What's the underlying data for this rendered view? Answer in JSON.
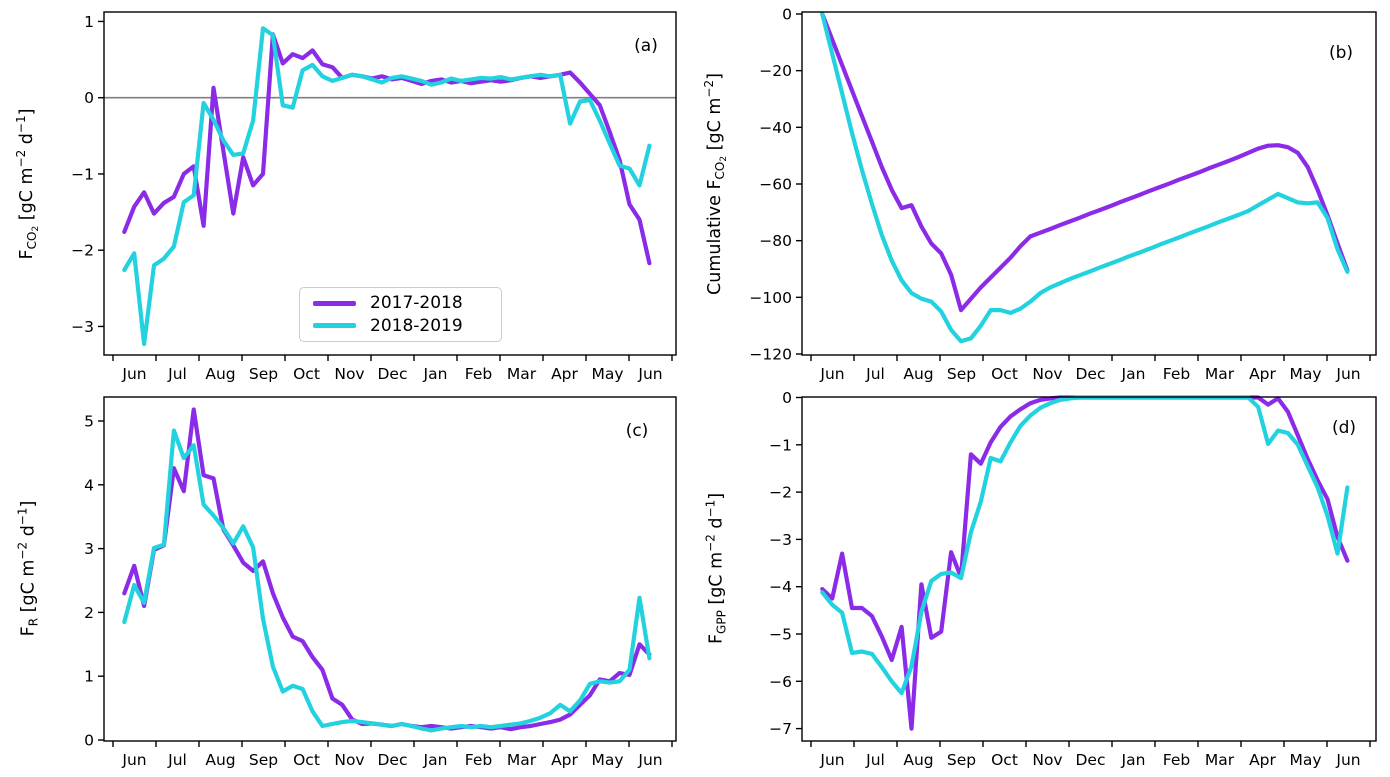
{
  "figure": {
    "background": "#ffffff",
    "months": [
      "Jun",
      "Jul",
      "Aug",
      "Sep",
      "Oct",
      "Nov",
      "Dec",
      "Jan",
      "Feb",
      "Mar",
      "Apr",
      "May",
      "Jun"
    ],
    "series_days": {
      "start": 8,
      "step": 7,
      "count": 54
    },
    "colors": {
      "series_2017_2018": "#8B2BE8",
      "series_2018_2019": "#22D2DE",
      "zero_line": "#808080",
      "spine": "#000000"
    },
    "legend": {
      "entries": [
        {
          "label": "2017-2018",
          "color_key": "series_2017_2018"
        },
        {
          "label": "2018-2019",
          "color_key": "series_2018_2019"
        }
      ]
    }
  },
  "chart_data": [
    {
      "id": "a",
      "type": "line",
      "letter": "(a)",
      "ylabel_segments": [
        {
          "t": "F"
        },
        {
          "s": "CO"
        },
        {
          "ss": "2"
        },
        {
          "t": " [gC m"
        },
        {
          "p": "−2"
        },
        {
          "t": " d"
        },
        {
          "p": "−1"
        },
        {
          "t": "]"
        }
      ],
      "x_categories": [
        "Jun",
        "Jul",
        "Aug",
        "Sep",
        "Oct",
        "Nov",
        "Dec",
        "Jan",
        "Feb",
        "Mar",
        "Apr",
        "May",
        "Jun"
      ],
      "ylim": [
        -3.37,
        1.12
      ],
      "grid": false,
      "zero_line": true,
      "yticks": [
        {
          "v": 1,
          "label": "1"
        },
        {
          "v": 0,
          "label": "0"
        },
        {
          "v": -1,
          "label": "−1"
        },
        {
          "v": -2,
          "label": "−2"
        },
        {
          "v": -3,
          "label": "−3"
        }
      ],
      "series": [
        {
          "name": "2017-2018",
          "color_key": "series_2017_2018",
          "values": [
            -1.76,
            -1.43,
            -1.24,
            -1.52,
            -1.38,
            -1.3,
            -1.0,
            -0.9,
            -1.68,
            0.13,
            -0.7,
            -1.52,
            -0.78,
            -1.15,
            -1.0,
            0.83,
            0.45,
            0.57,
            0.52,
            0.62,
            0.44,
            0.4,
            0.26,
            0.3,
            0.28,
            0.25,
            0.28,
            0.24,
            0.26,
            0.22,
            0.18,
            0.22,
            0.24,
            0.2,
            0.22,
            0.19,
            0.21,
            0.23,
            0.21,
            0.23,
            0.26,
            0.28,
            0.26,
            0.28,
            0.3,
            0.33,
            0.2,
            0.05,
            -0.1,
            -0.45,
            -0.82,
            -1.4,
            -1.6,
            -2.17
          ]
        },
        {
          "name": "2018-2019",
          "color_key": "series_2018_2019",
          "values": [
            -2.26,
            -2.04,
            -3.23,
            -2.2,
            -2.11,
            -1.95,
            -1.37,
            -1.28,
            -0.07,
            -0.29,
            -0.56,
            -0.75,
            -0.73,
            -0.3,
            0.91,
            0.82,
            -0.1,
            -0.13,
            0.36,
            0.43,
            0.28,
            0.22,
            0.26,
            0.3,
            0.28,
            0.24,
            0.2,
            0.26,
            0.28,
            0.25,
            0.22,
            0.17,
            0.2,
            0.25,
            0.22,
            0.24,
            0.26,
            0.25,
            0.27,
            0.24,
            0.26,
            0.28,
            0.3,
            0.28,
            0.3,
            -0.34,
            -0.05,
            -0.03,
            -0.3,
            -0.6,
            -0.89,
            -0.93,
            -1.15,
            -0.63
          ]
        }
      ]
    },
    {
      "id": "b",
      "type": "line",
      "letter": "(b)",
      "ylabel_segments": [
        {
          "t": "Cumulative F"
        },
        {
          "s": "CO"
        },
        {
          "ss": "2"
        },
        {
          "t": " [gC m"
        },
        {
          "p": "−2"
        },
        {
          "t": "]"
        }
      ],
      "x_categories": [
        "Jun",
        "Jul",
        "Aug",
        "Sep",
        "Oct",
        "Nov",
        "Dec",
        "Jan",
        "Feb",
        "Mar",
        "Apr",
        "May",
        "Jun"
      ],
      "ylim": [
        -120,
        0
      ],
      "grid": false,
      "zero_line": false,
      "yticks": [
        {
          "v": 0,
          "label": "0"
        },
        {
          "v": -20,
          "label": "−20"
        },
        {
          "v": -40,
          "label": "−40"
        },
        {
          "v": -60,
          "label": "−60"
        },
        {
          "v": -80,
          "label": "−80"
        },
        {
          "v": -100,
          "label": "−100"
        },
        {
          "v": -120,
          "label": "−120"
        }
      ],
      "series": [
        {
          "name": "2017-2018",
          "color_key": "series_2017_2018",
          "values": [
            0,
            -9,
            -18,
            -27,
            -36,
            -45,
            -54,
            -62,
            -68.5,
            -67.5,
            -75,
            -81,
            -84.5,
            -92,
            -104.5,
            -100.5,
            -96.5,
            -93,
            -89.5,
            -86,
            -82,
            -78.5,
            -77.2,
            -75.9,
            -74.5,
            -73.2,
            -71.9,
            -70.5,
            -69.2,
            -67.9,
            -66.5,
            -65.2,
            -63.9,
            -62.5,
            -61.2,
            -59.9,
            -58.5,
            -57.2,
            -55.9,
            -54.5,
            -53.2,
            -51.9,
            -50.5,
            -49,
            -47.5,
            -46.5,
            -46.3,
            -47,
            -49,
            -54,
            -62,
            -71,
            -81,
            -90.5
          ]
        },
        {
          "name": "2018-2019",
          "color_key": "series_2018_2019",
          "values": [
            0,
            -14,
            -28,
            -42,
            -55,
            -67,
            -78,
            -87,
            -94,
            -98.5,
            -100.5,
            -101.5,
            -105,
            -111.5,
            -115.5,
            -114.5,
            -110,
            -104.5,
            -104.5,
            -105.5,
            -104,
            -101.5,
            -98.5,
            -96.5,
            -95,
            -93.5,
            -92.2,
            -90.9,
            -89.5,
            -88.2,
            -86.9,
            -85.5,
            -84.2,
            -82.9,
            -81.5,
            -80.2,
            -78.9,
            -77.5,
            -76.2,
            -74.9,
            -73.5,
            -72.2,
            -70.9,
            -69.5,
            -67.5,
            -65.5,
            -63.5,
            -65,
            -66.5,
            -66.8,
            -66.5,
            -72,
            -83,
            -91
          ]
        }
      ]
    },
    {
      "id": "c",
      "type": "line",
      "letter": "(c)",
      "ylabel_segments": [
        {
          "t": "F"
        },
        {
          "s": "R"
        },
        {
          "t": " [gC m"
        },
        {
          "p": "−2"
        },
        {
          "t": " d"
        },
        {
          "p": "−1"
        },
        {
          "t": "]"
        }
      ],
      "x_categories": [
        "Jun",
        "Jul",
        "Aug",
        "Sep",
        "Oct",
        "Nov",
        "Dec",
        "Jan",
        "Feb",
        "Mar",
        "Apr",
        "May",
        "Jun"
      ],
      "ylim": [
        0,
        5.35
      ],
      "grid": false,
      "zero_line": false,
      "yticks": [
        {
          "v": 5,
          "label": "5"
        },
        {
          "v": 4,
          "label": "4"
        },
        {
          "v": 3,
          "label": "3"
        },
        {
          "v": 2,
          "label": "2"
        },
        {
          "v": 1,
          "label": "1"
        },
        {
          "v": 0,
          "label": "0"
        }
      ],
      "series": [
        {
          "name": "2017-2018",
          "color_key": "series_2017_2018",
          "values": [
            2.3,
            2.73,
            2.1,
            2.98,
            3.05,
            4.26,
            3.9,
            5.18,
            4.15,
            4.1,
            3.3,
            3.05,
            2.78,
            2.65,
            2.8,
            2.3,
            1.92,
            1.62,
            1.55,
            1.3,
            1.1,
            0.65,
            0.55,
            0.32,
            0.25,
            0.26,
            0.24,
            0.22,
            0.25,
            0.22,
            0.2,
            0.22,
            0.2,
            0.18,
            0.2,
            0.22,
            0.2,
            0.18,
            0.2,
            0.17,
            0.2,
            0.22,
            0.25,
            0.28,
            0.32,
            0.4,
            0.55,
            0.7,
            0.95,
            0.92,
            1.05,
            1.02,
            1.5,
            1.34
          ]
        },
        {
          "name": "2018-2019",
          "color_key": "series_2018_2019",
          "values": [
            1.85,
            2.43,
            2.15,
            3.01,
            3.06,
            4.85,
            4.42,
            4.62,
            3.69,
            3.52,
            3.32,
            3.08,
            3.35,
            3.02,
            1.9,
            1.15,
            0.76,
            0.85,
            0.8,
            0.45,
            0.22,
            0.25,
            0.28,
            0.3,
            0.28,
            0.26,
            0.24,
            0.22,
            0.25,
            0.22,
            0.18,
            0.15,
            0.18,
            0.2,
            0.22,
            0.2,
            0.22,
            0.2,
            0.22,
            0.24,
            0.26,
            0.3,
            0.35,
            0.42,
            0.55,
            0.45,
            0.62,
            0.88,
            0.92,
            0.9,
            0.92,
            1.1,
            2.23,
            1.28
          ]
        }
      ]
    },
    {
      "id": "d",
      "type": "line",
      "letter": "(d)",
      "ylabel_segments": [
        {
          "t": "F"
        },
        {
          "s": "GPP"
        },
        {
          "t": " [gC m"
        },
        {
          "p": "−2"
        },
        {
          "t": " d"
        },
        {
          "p": "−1"
        },
        {
          "t": "]"
        }
      ],
      "x_categories": [
        "Jun",
        "Jul",
        "Aug",
        "Sep",
        "Oct",
        "Nov",
        "Dec",
        "Jan",
        "Feb",
        "Mar",
        "Apr",
        "May",
        "Jun"
      ],
      "ylim": [
        -7.4,
        0
      ],
      "grid": false,
      "zero_line": false,
      "yticks": [
        {
          "v": 0,
          "label": "0"
        },
        {
          "v": -1,
          "label": "−1"
        },
        {
          "v": -2,
          "label": "−2"
        },
        {
          "v": -3,
          "label": "−3"
        },
        {
          "v": -4,
          "label": "−4"
        },
        {
          "v": -5,
          "label": "−5"
        },
        {
          "v": -6,
          "label": "−6"
        },
        {
          "v": -7,
          "label": "−7"
        }
      ],
      "series": [
        {
          "name": "2017-2018",
          "color_key": "series_2017_2018",
          "values": [
            -4.05,
            -4.25,
            -3.3,
            -4.45,
            -4.45,
            -4.62,
            -5.05,
            -5.55,
            -4.85,
            -7.0,
            -3.95,
            -5.08,
            -4.95,
            -3.27,
            -3.8,
            -1.2,
            -1.4,
            -0.95,
            -0.62,
            -0.4,
            -0.25,
            -0.12,
            -0.05,
            -0.02,
            0,
            0,
            0,
            0,
            0,
            0,
            0,
            0,
            0,
            0,
            0,
            0,
            0,
            0,
            0,
            0,
            0,
            0,
            0,
            0,
            0,
            -0.15,
            -0.02,
            -0.3,
            -0.8,
            -1.3,
            -1.75,
            -2.15,
            -2.95,
            -3.45
          ]
        },
        {
          "name": "2018-2019",
          "color_key": "series_2018_2019",
          "values": [
            -4.12,
            -4.38,
            -4.55,
            -5.4,
            -5.37,
            -5.42,
            -5.7,
            -6.0,
            -6.25,
            -5.68,
            -4.53,
            -3.88,
            -3.73,
            -3.7,
            -3.82,
            -2.85,
            -2.2,
            -1.28,
            -1.35,
            -0.95,
            -0.6,
            -0.38,
            -0.22,
            -0.12,
            -0.05,
            -0.02,
            0,
            0,
            0,
            0,
            0,
            0,
            0,
            0,
            0,
            0,
            0,
            0,
            0,
            0,
            0,
            0,
            0,
            0,
            -0.2,
            -0.98,
            -0.7,
            -0.75,
            -1.0,
            -1.45,
            -1.9,
            -2.5,
            -3.3,
            -1.9
          ]
        }
      ]
    }
  ]
}
